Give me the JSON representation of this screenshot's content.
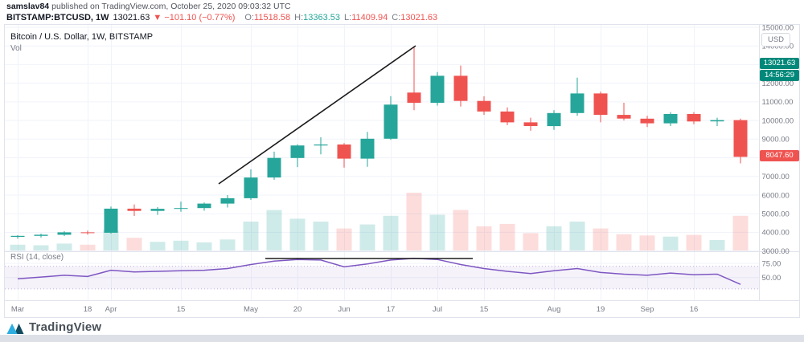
{
  "header": {
    "author": "samslav84",
    "published": "published on TradingView.com, October 25, 2020 09:03:32 UTC",
    "symbol": "BITSTAMP:BTCUSD, 1W",
    "price": "13021.63",
    "change": "▼ −101.10 (−0.77%)",
    "ohlc": [
      {
        "label": "O:",
        "value": "11518.58",
        "dir": "down"
      },
      {
        "label": "H:",
        "value": "13363.53",
        "dir": "up"
      },
      {
        "label": "L:",
        "value": "11409.94",
        "dir": "down"
      },
      {
        "label": "C:",
        "value": "13021.63",
        "dir": "down"
      }
    ]
  },
  "legend": {
    "title": "Bitcoin / U.S. Dollar, 1W, BITSTAMP",
    "vol": "Vol",
    "rsi": "RSI (14, close)"
  },
  "axis": {
    "currency": "USD",
    "price_gridlines": [
      15000,
      14000,
      13000,
      12000,
      11000,
      10000,
      9000,
      8000,
      7000,
      6000,
      5000,
      4000,
      3000
    ],
    "price_labels": [
      15000,
      14000,
      12000,
      11000,
      10000,
      9000,
      7000,
      6000,
      5000,
      4000,
      3000
    ],
    "rsi_ticks": [
      75,
      50
    ],
    "time_ticks": [
      {
        "i": 0,
        "label": "Mar"
      },
      {
        "i": 3,
        "label": "18"
      },
      {
        "i": 4,
        "label": "Apr"
      },
      {
        "i": 7,
        "label": "15"
      },
      {
        "i": 10,
        "label": "May"
      },
      {
        "i": 12,
        "label": "20"
      },
      {
        "i": 14,
        "label": "Jun"
      },
      {
        "i": 16,
        "label": "17"
      },
      {
        "i": 18,
        "label": "Jul"
      },
      {
        "i": 20,
        "label": "15"
      },
      {
        "i": 23,
        "label": "Aug"
      },
      {
        "i": 25,
        "label": "19"
      },
      {
        "i": 27,
        "label": "Sep"
      },
      {
        "i": 29,
        "label": "16"
      }
    ]
  },
  "badges": {
    "current": {
      "text": "13021.63",
      "price": 13021.63
    },
    "countdown": {
      "text": "14:56:29"
    },
    "last": {
      "text": "8047.60",
      "price": 8047.6
    }
  },
  "footer": {
    "brand": "TradingView"
  },
  "colors": {
    "up": "#26a69a",
    "down": "#ef5350",
    "vol_up": "rgba(38,166,154,0.22)",
    "vol_down": "rgba(239,83,80,0.20)",
    "badge_teal": "#00897b",
    "badge_red": "#ef5350",
    "rsi_line": "#7e57c2",
    "rsi_band": "rgba(126,87,194,0.08)",
    "rsi_band_line": "rgba(126,87,194,0.45)",
    "grid": "#f0f3fa",
    "separator": "#e0e3eb",
    "axis_text": "#787b86",
    "annotation": "#1b1b1b"
  },
  "chart_data": {
    "type": "candlestick",
    "title": "Bitcoin / U.S. Dollar, 1W, BITSTAMP",
    "indicators": [
      "Vol",
      "RSI (14, close)"
    ],
    "ylim": [
      2983,
      15129
    ],
    "rsi_ylim": [
      10,
      95
    ],
    "rsi_band": [
      30,
      70
    ],
    "bars_ohlc": [
      [
        3760,
        3850,
        3660,
        3810
      ],
      [
        3810,
        3930,
        3720,
        3870
      ],
      [
        3870,
        4060,
        3800,
        4000
      ],
      [
        4000,
        4090,
        3880,
        3980
      ],
      [
        3980,
        5380,
        3930,
        5270
      ],
      [
        5270,
        5500,
        4880,
        5150
      ],
      [
        5150,
        5350,
        4940,
        5260
      ],
      [
        5260,
        5650,
        5100,
        5300
      ],
      [
        5300,
        5600,
        5160,
        5540
      ],
      [
        5540,
        6000,
        5330,
        5830
      ],
      [
        5830,
        7380,
        5740,
        6940
      ],
      [
        6940,
        8330,
        6820,
        7990
      ],
      [
        7990,
        8720,
        7500,
        8660
      ],
      [
        8660,
        9100,
        8180,
        8710
      ],
      [
        8710,
        8790,
        7470,
        7950
      ],
      [
        7950,
        9390,
        7520,
        9020
      ],
      [
        9020,
        11310,
        8960,
        10850
      ],
      [
        11500,
        13950,
        10550,
        10950
      ],
      [
        10950,
        12600,
        10800,
        12400
      ],
      [
        12400,
        12950,
        10750,
        11050
      ],
      [
        11050,
        11300,
        10300,
        10480
      ],
      [
        10480,
        10700,
        9750,
        9900
      ],
      [
        9900,
        10150,
        9450,
        9700
      ],
      [
        9700,
        10550,
        9500,
        10400
      ],
      [
        10400,
        12300,
        10250,
        11450
      ],
      [
        11450,
        11550,
        9900,
        10300
      ],
      [
        10300,
        10950,
        10000,
        10100
      ],
      [
        10100,
        10250,
        9650,
        9850
      ],
      [
        9850,
        10450,
        9700,
        10350
      ],
      [
        10350,
        10450,
        9800,
        9950
      ],
      [
        9950,
        10150,
        9700,
        10020
      ],
      [
        10020,
        10100,
        7700,
        8047.6
      ]
    ],
    "volume_relative": [
      0.1,
      0.09,
      0.12,
      0.1,
      0.35,
      0.22,
      0.15,
      0.17,
      0.14,
      0.19,
      0.5,
      0.7,
      0.55,
      0.5,
      0.38,
      0.45,
      0.6,
      1.0,
      0.62,
      0.7,
      0.42,
      0.46,
      0.3,
      0.42,
      0.5,
      0.38,
      0.28,
      0.26,
      0.24,
      0.27,
      0.18,
      0.6
    ],
    "rsi": [
      48,
      51,
      54,
      52,
      63,
      60,
      61,
      62,
      63,
      66,
      73,
      79,
      82,
      81,
      69,
      74,
      81,
      84,
      82,
      73,
      66,
      61,
      57,
      62,
      66,
      59,
      56,
      54,
      58,
      55,
      56,
      38
    ],
    "annotations": [
      {
        "type": "trendline",
        "pane": "price",
        "points": [
          [
            266,
            198
          ],
          [
            511,
            26
          ]
        ]
      },
      {
        "type": "horizontal-line",
        "pane": "rsi",
        "points": [
          [
            324,
            291
          ],
          [
            582,
            291
          ]
        ]
      }
    ]
  }
}
